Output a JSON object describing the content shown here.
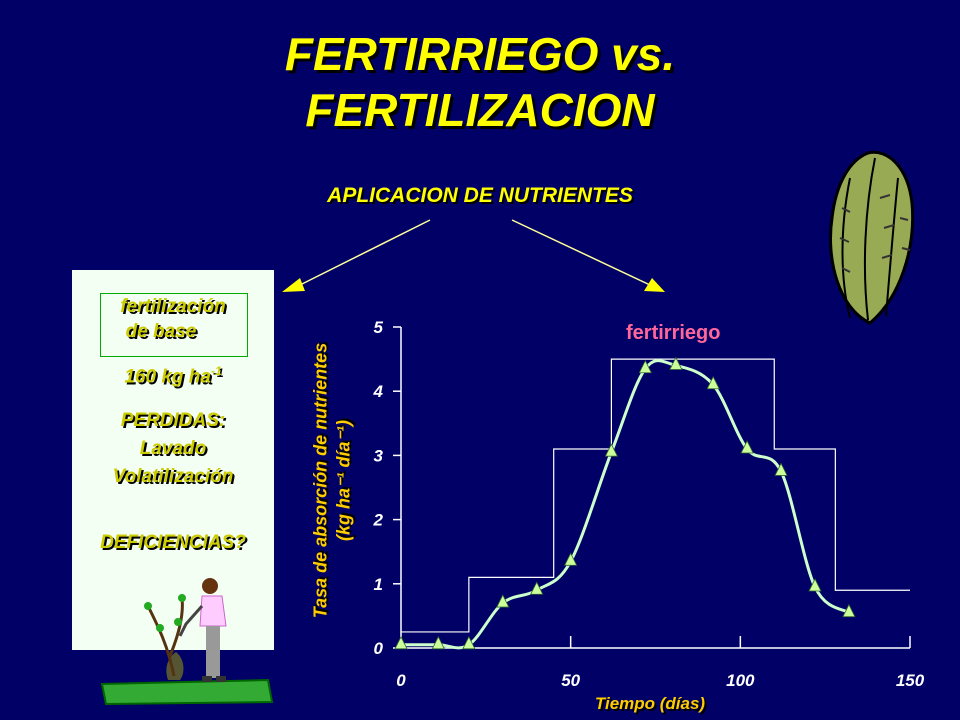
{
  "title_line1": "FERTIRRIEGO vs.",
  "title_line2": "FERTILIZACION",
  "subtitle": "APLICACION DE NUTRIENTES",
  "panel": {
    "box_line1": "fertilización",
    "box_line2": "de base",
    "dose": "160 kg ha",
    "dose_exp": "-1",
    "losses_title": "PERDIDAS:",
    "loss1": "Lavado",
    "loss2": "Volatilización",
    "deficiencies": "DEFICIENCIAS?"
  },
  "colors": {
    "background": "#000066",
    "title": "#ffff00",
    "curve": "#ccffcc",
    "markers": "#ccff99",
    "series_label": "#ff6699"
  },
  "icons": [
    "lettuce-icon",
    "farmer-watering-plant-icon"
  ],
  "chart_data": {
    "type": "line",
    "title": "",
    "xlabel": "Tiempo (días)",
    "ylabel": "Tasa de absorción de nutrientes (kg ha⁻¹ día⁻¹)",
    "ylabel_line1": "Tasa de absorción de nutrientes",
    "ylabel_line2": "(kg ha⁻¹ día⁻¹)",
    "xlim": [
      0,
      150
    ],
    "ylim": [
      0,
      5
    ],
    "xticks": [
      0,
      50,
      100,
      150
    ],
    "yticks": [
      0,
      1,
      2,
      3,
      4,
      5
    ],
    "series": [
      {
        "name": "",
        "kind": "absorption-curve",
        "x": [
          0,
          11,
          20,
          30,
          40,
          50,
          62,
          72,
          81,
          92,
          102,
          112,
          122,
          132
        ],
        "y": [
          0.05,
          0.05,
          0.05,
          0.7,
          0.9,
          1.35,
          3.05,
          4.35,
          4.4,
          4.1,
          3.1,
          2.75,
          0.95,
          0.55
        ]
      },
      {
        "name": "fertirriego",
        "kind": "step",
        "x": [
          0,
          20,
          20,
          45,
          45,
          62,
          62,
          110,
          110,
          128,
          128,
          150
        ],
        "y": [
          0.25,
          0.25,
          1.1,
          1.1,
          3.1,
          3.1,
          4.5,
          4.5,
          3.1,
          3.1,
          0.9,
          0.9
        ]
      }
    ]
  }
}
